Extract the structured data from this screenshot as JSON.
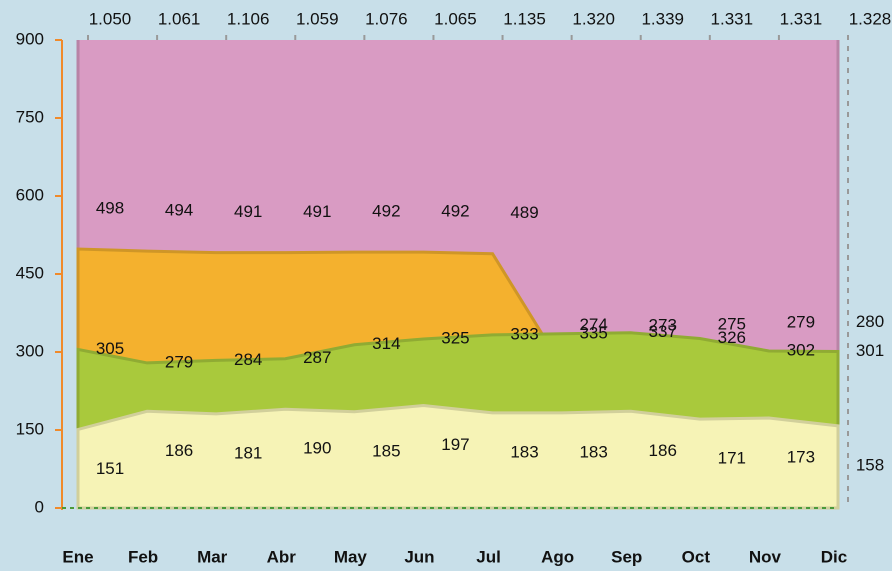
{
  "chart_data": {
    "type": "area",
    "categories": [
      "Ene",
      "Feb",
      "Mar",
      "Abr",
      "May",
      "Jun",
      "Jul",
      "Ago",
      "Sep",
      "Oct",
      "Nov",
      "Dic"
    ],
    "series": [
      {
        "color": "#d99bc3",
        "values": [
          1050,
          1061,
          1106,
          1059,
          1076,
          1065,
          1135,
          1320,
          1339,
          1331,
          1331,
          1328
        ],
        "value_labels": [
          "1.050",
          "1.061",
          "1.106",
          "1.059",
          "1.076",
          "1.065",
          "1.135",
          "1.320",
          "1.339",
          "1.331",
          "1.331",
          "1.328"
        ]
      },
      {
        "color": "#f4b12e",
        "values": [
          498,
          494,
          491,
          491,
          492,
          492,
          489,
          274,
          273,
          275,
          279,
          280
        ]
      },
      {
        "color": "#a9c93c",
        "values": [
          305,
          279,
          284,
          287,
          314,
          325,
          333,
          335,
          337,
          326,
          302,
          301
        ]
      },
      {
        "color": "#f6f3b6",
        "values": [
          151,
          186,
          181,
          190,
          185,
          197,
          183,
          183,
          186,
          171,
          173,
          158
        ]
      }
    ],
    "ylim": [
      0,
      900
    ],
    "yticks": [
      0,
      150,
      300,
      450,
      600,
      750,
      900
    ]
  }
}
